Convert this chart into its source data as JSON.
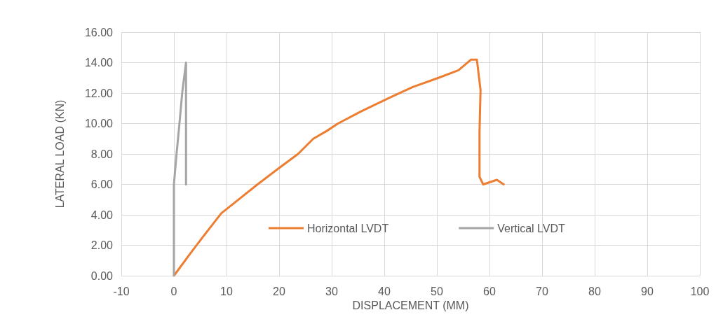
{
  "chart_data": {
    "type": "line",
    "xlabel": "DISPLACEMENT (MM)",
    "ylabel": "LATERAL LOAD (KN)",
    "series": [
      {
        "name": "Horizontal LVDT",
        "color": "#ed7d31",
        "x": [
          0,
          3.2,
          5.4,
          9.0,
          13.0,
          15.9,
          19.7,
          23.6,
          26.5,
          29.0,
          31.2,
          35.6,
          41.0,
          45.4,
          50.3,
          54.1,
          56.5,
          57.6,
          58.3,
          58.1,
          58.1,
          58.8,
          61.4,
          62.7
        ],
        "values": [
          0,
          1.5,
          2.5,
          4.1,
          5.2,
          6.0,
          7.0,
          8.0,
          9.0,
          9.5,
          10.0,
          10.8,
          11.7,
          12.4,
          13.0,
          13.5,
          14.2,
          14.2,
          12.2,
          9.4,
          6.5,
          6.0,
          6.3,
          6.0
        ]
      },
      {
        "name": "Vertical LVDT",
        "color": "#a5a5a5",
        "x": [
          0,
          0,
          0.5,
          1.0,
          1.6,
          2.3,
          2.3
        ],
        "values": [
          0,
          6.0,
          8.0,
          9.8,
          12.1,
          14.0,
          6.0
        ]
      }
    ],
    "xlim": [
      -10,
      100
    ],
    "xticks": [
      -10,
      0,
      10,
      20,
      30,
      40,
      50,
      60,
      70,
      80,
      90,
      100
    ],
    "ylim": [
      0,
      16
    ],
    "yticks": [
      {
        "value": 0,
        "label": "0.00"
      },
      {
        "value": 2,
        "label": "2.00"
      },
      {
        "value": 4,
        "label": "4.00"
      },
      {
        "value": 6,
        "label": "6.00"
      },
      {
        "value": 8,
        "label": "8.00"
      },
      {
        "value": 10,
        "label": "10.00"
      },
      {
        "value": 12,
        "label": "12.00"
      },
      {
        "value": 14,
        "label": "14.00"
      },
      {
        "value": 16,
        "label": "16.00"
      }
    ],
    "grid": true,
    "legend": "bottom",
    "marker": "none",
    "line_style": "solid"
  }
}
